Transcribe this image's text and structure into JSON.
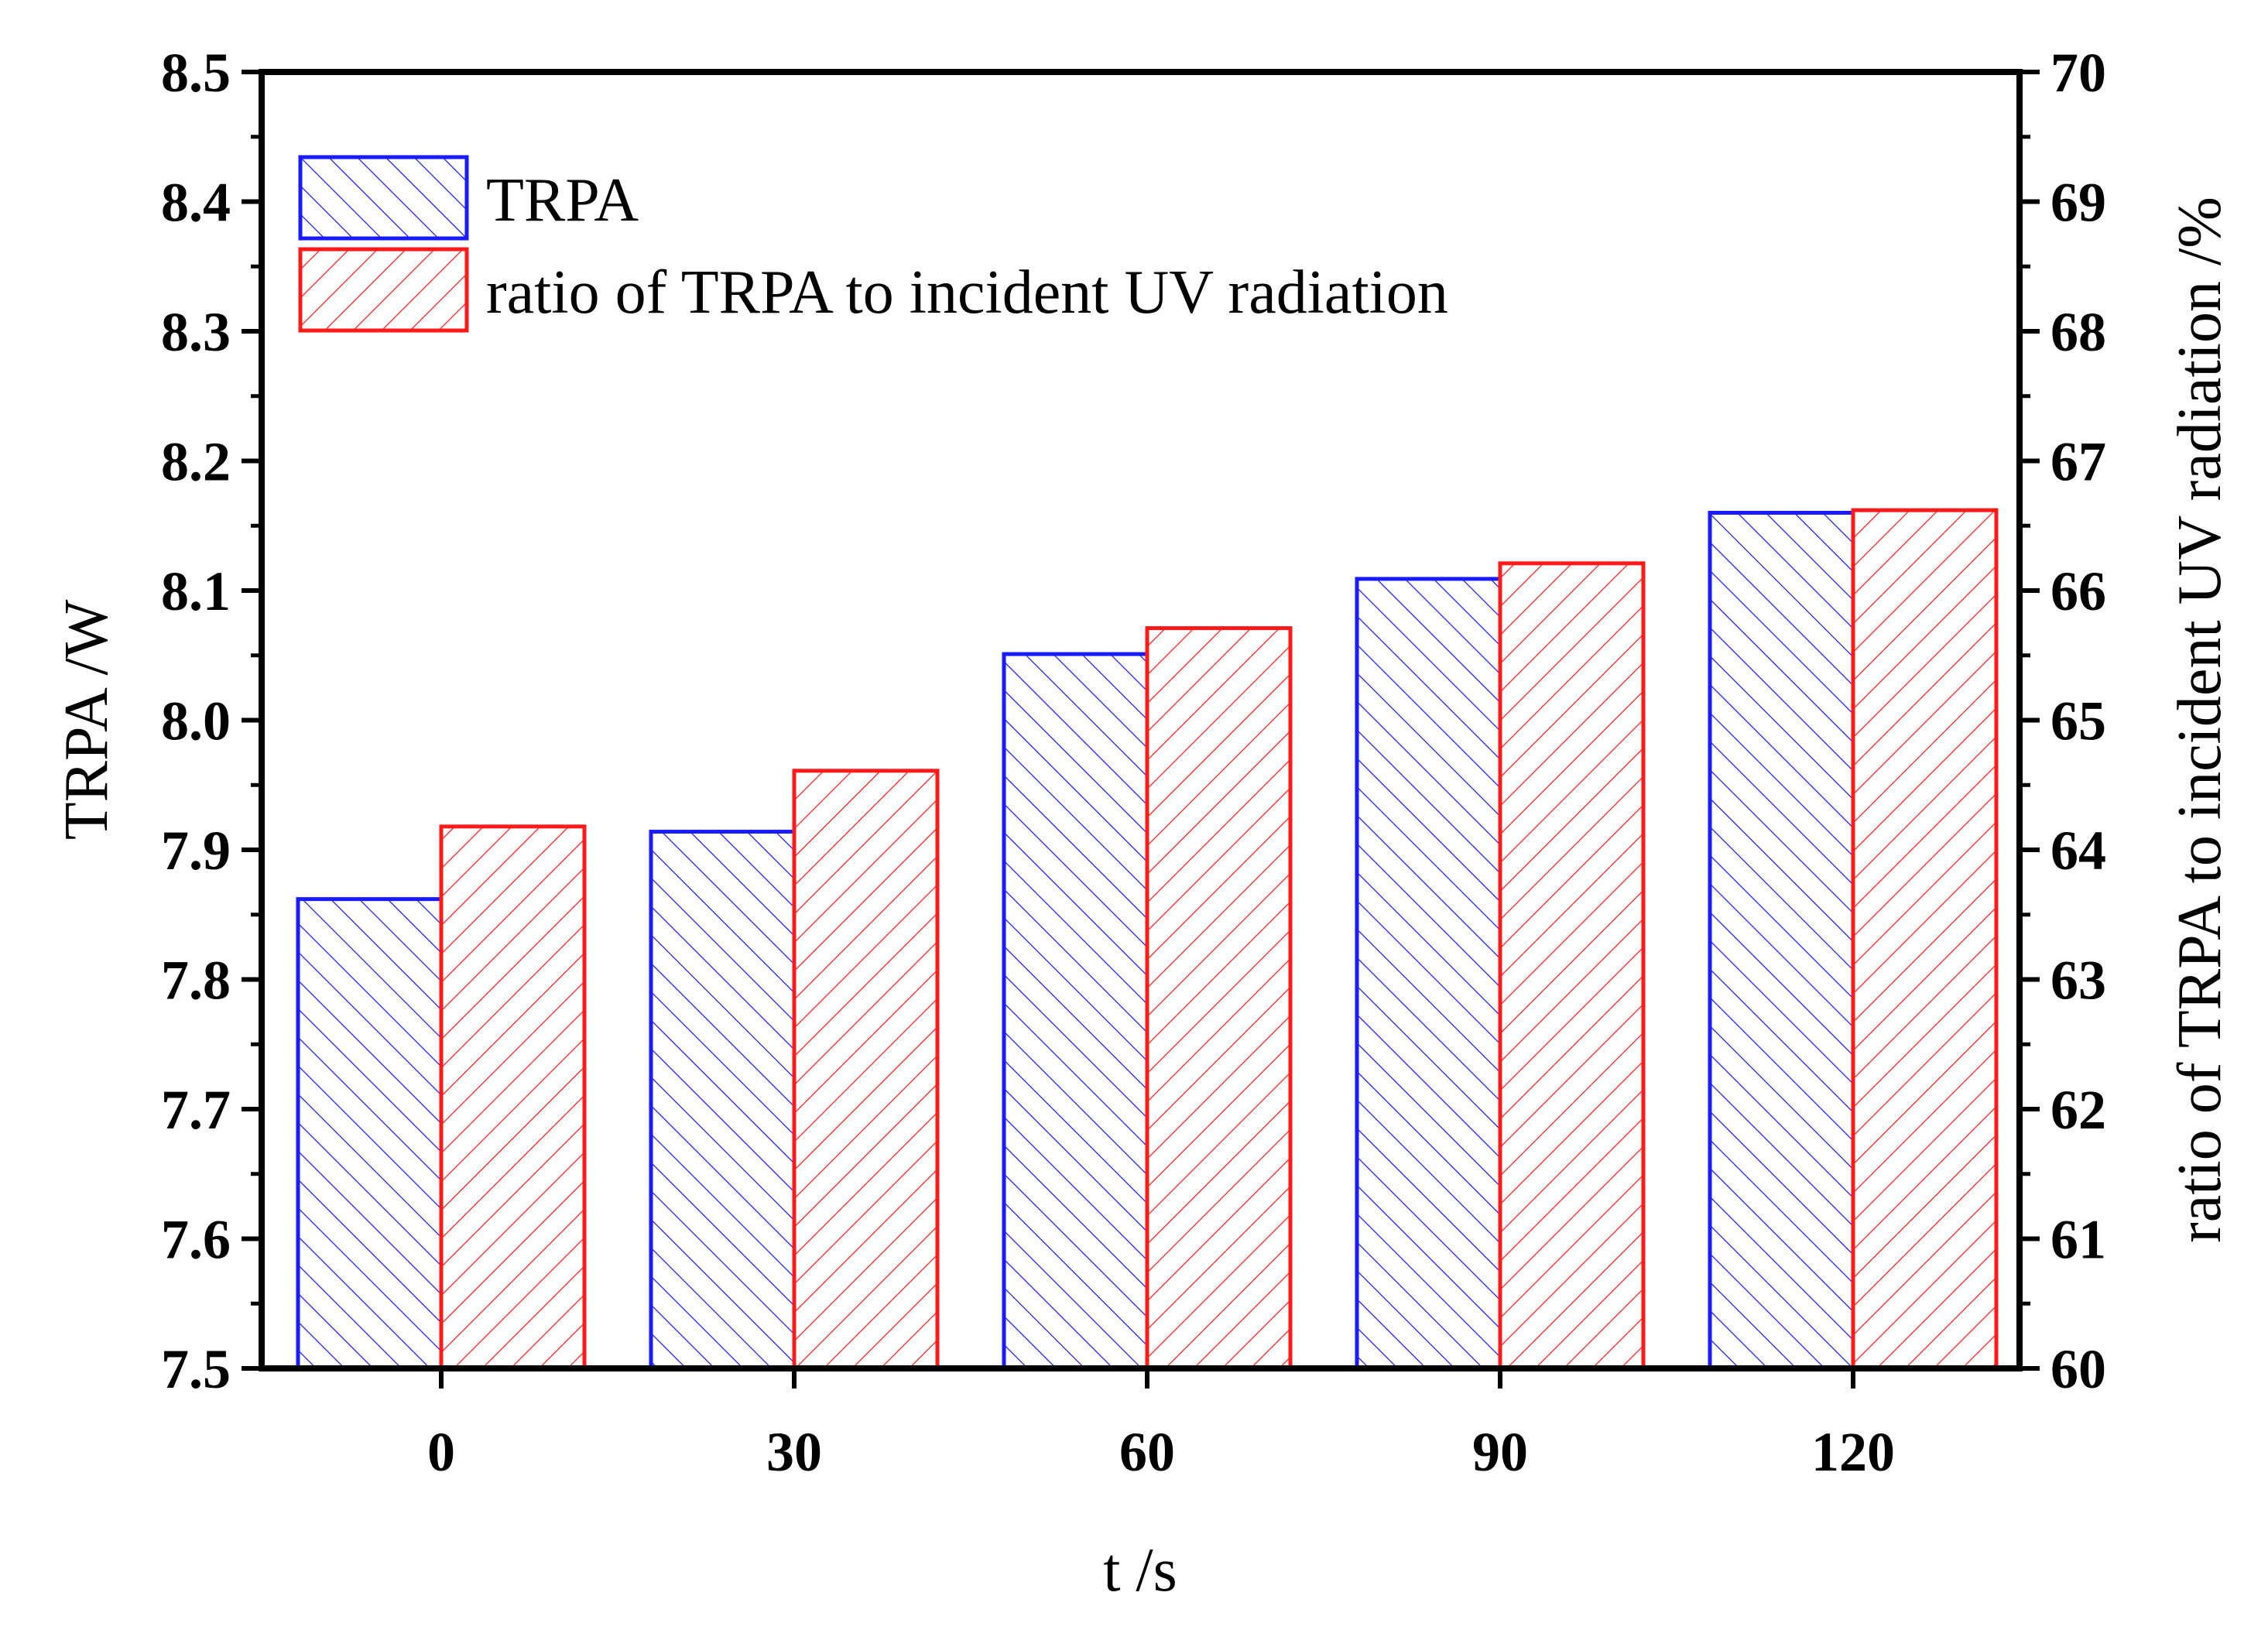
{
  "chart_data": {
    "type": "bar",
    "categories": [
      "0",
      "30",
      "60",
      "90",
      "120"
    ],
    "series": [
      {
        "name": "TRPA",
        "axis": "left",
        "color": "#1a1aff",
        "pattern": "back-diagonal-hatch",
        "values": [
          7.862,
          7.914,
          8.051,
          8.109,
          8.16
        ]
      },
      {
        "name": "ratio of TRPA to incident UV radiation",
        "axis": "right",
        "color": "#ff0000",
        "pattern": "forward-diagonal-hatch",
        "values": [
          64.18,
          64.61,
          65.71,
          66.21,
          66.62
        ]
      }
    ],
    "xlabel": "t /s",
    "ylabel_left": "TRPA /W",
    "ylabel_right": "ratio of TRPA to incident UV radiation /%",
    "ylim_left": [
      7.5,
      8.5
    ],
    "ylim_right": [
      60,
      70
    ],
    "yticks_left": [
      "7.5",
      "7.6",
      "7.7",
      "7.8",
      "7.9",
      "8.0",
      "8.1",
      "8.2",
      "8.3",
      "8.4",
      "8.5"
    ],
    "yticks_right": [
      "60",
      "61",
      "62",
      "63",
      "64",
      "65",
      "66",
      "67",
      "68",
      "69",
      "70"
    ],
    "legend_position": "top-left",
    "grid": false
  }
}
